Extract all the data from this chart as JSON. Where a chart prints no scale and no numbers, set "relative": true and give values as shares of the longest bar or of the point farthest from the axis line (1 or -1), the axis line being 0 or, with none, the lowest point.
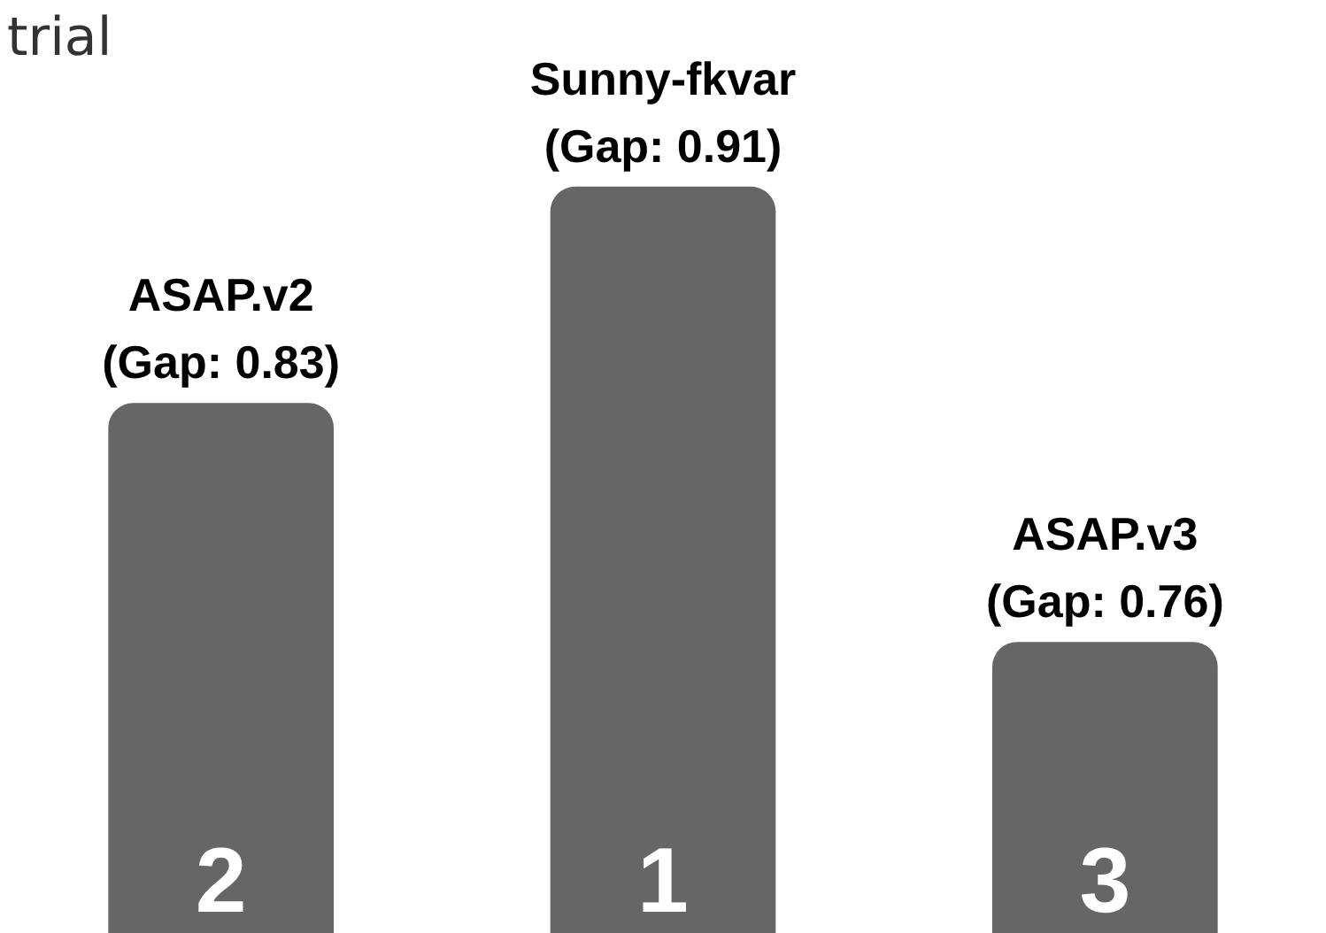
{
  "chart_data": {
    "type": "bar",
    "title": "trial",
    "relative": true,
    "categories": [
      "2",
      "1",
      "3"
    ],
    "values": [
      0.71,
      1,
      0.39
    ],
    "color": "#666666",
    "annotations": [
      "ASAP.v2",
      "(Gap: 0.83)",
      "Sunny-fkvar",
      "(Gap: 0.91)",
      "ASAP.v3",
      "(Gap: 0.76)"
    ]
  }
}
